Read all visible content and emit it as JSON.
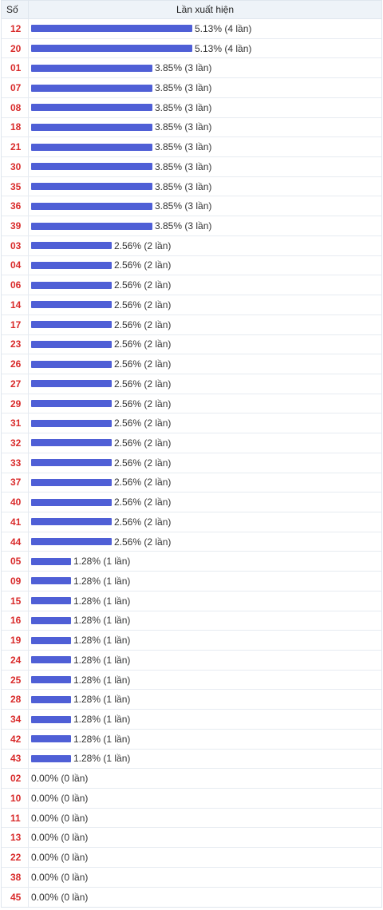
{
  "header": {
    "col_number": "Số",
    "col_frequency": "Lần xuất hiện"
  },
  "colors": {
    "bar": "#4f5fd6",
    "number": "#d92b2b"
  },
  "chart_data": {
    "type": "bar",
    "orientation": "horizontal",
    "xlim": [
      0,
      5.13
    ],
    "categories": [
      "12",
      "20",
      "01",
      "07",
      "08",
      "18",
      "21",
      "30",
      "35",
      "36",
      "39",
      "03",
      "04",
      "06",
      "14",
      "17",
      "23",
      "26",
      "27",
      "29",
      "31",
      "32",
      "33",
      "37",
      "40",
      "41",
      "44",
      "05",
      "09",
      "15",
      "16",
      "19",
      "24",
      "25",
      "28",
      "34",
      "42",
      "43",
      "02",
      "10",
      "11",
      "13",
      "22",
      "38",
      "45"
    ],
    "values": [
      5.13,
      5.13,
      3.85,
      3.85,
      3.85,
      3.85,
      3.85,
      3.85,
      3.85,
      3.85,
      3.85,
      2.56,
      2.56,
      2.56,
      2.56,
      2.56,
      2.56,
      2.56,
      2.56,
      2.56,
      2.56,
      2.56,
      2.56,
      2.56,
      2.56,
      2.56,
      2.56,
      1.28,
      1.28,
      1.28,
      1.28,
      1.28,
      1.28,
      1.28,
      1.28,
      1.28,
      1.28,
      1.28,
      0,
      0,
      0,
      0,
      0,
      0,
      0
    ],
    "labels": [
      "5.13% (4 lần)",
      "5.13% (4 lần)",
      "3.85% (3 lần)",
      "3.85% (3 lần)",
      "3.85% (3 lần)",
      "3.85% (3 lần)",
      "3.85% (3 lần)",
      "3.85% (3 lần)",
      "3.85% (3 lần)",
      "3.85% (3 lần)",
      "3.85% (3 lần)",
      "2.56% (2 lần)",
      "2.56% (2 lần)",
      "2.56% (2 lần)",
      "2.56% (2 lần)",
      "2.56% (2 lần)",
      "2.56% (2 lần)",
      "2.56% (2 lần)",
      "2.56% (2 lần)",
      "2.56% (2 lần)",
      "2.56% (2 lần)",
      "2.56% (2 lần)",
      "2.56% (2 lần)",
      "2.56% (2 lần)",
      "2.56% (2 lần)",
      "2.56% (2 lần)",
      "2.56% (2 lần)",
      "1.28% (1 lần)",
      "1.28% (1 lần)",
      "1.28% (1 lần)",
      "1.28% (1 lần)",
      "1.28% (1 lần)",
      "1.28% (1 lần)",
      "1.28% (1 lần)",
      "1.28% (1 lần)",
      "1.28% (1 lần)",
      "1.28% (1 lần)",
      "1.28% (1 lần)",
      "0.00% (0 lần)",
      "0.00% (0 lần)",
      "0.00% (0 lần)",
      "0.00% (0 lần)",
      "0.00% (0 lần)",
      "0.00% (0 lần)",
      "0.00% (0 lần)"
    ]
  }
}
